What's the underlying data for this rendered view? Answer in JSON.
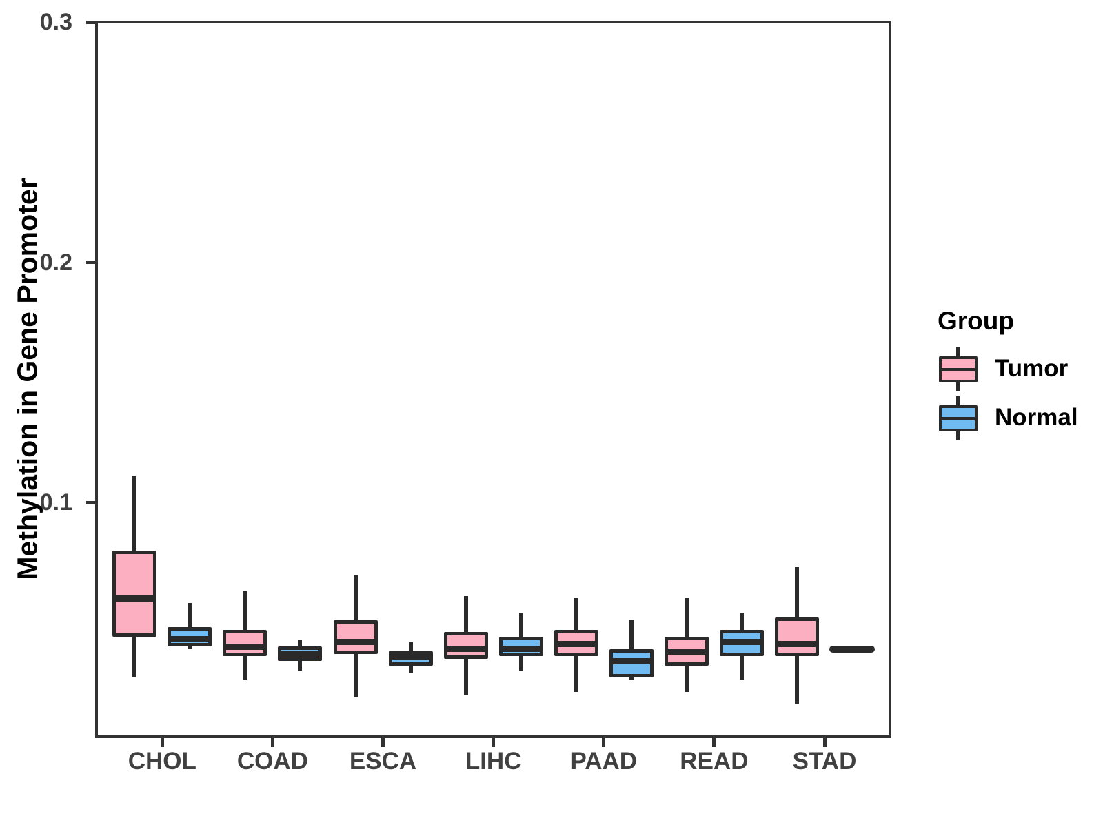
{
  "chart_data": {
    "type": "boxplot",
    "title": "",
    "xlabel": "",
    "ylabel": "Methylation in Gene Promoter",
    "legend_title": "Group",
    "legend_position": "right",
    "grid": false,
    "ylim": [
      0.002,
      0.3005
    ],
    "yticks": [
      {
        "value": 0.3,
        "label": "0.3"
      },
      {
        "value": 0.2,
        "label": "0.2"
      },
      {
        "value": 0.1,
        "label": "0.1"
      }
    ],
    "categories": [
      "CHOL",
      "COAD",
      "ESCA",
      "LIHC",
      "PAAD",
      "READ",
      "STAD"
    ],
    "series": [
      {
        "name": "Tumor",
        "color": "#FBAFC1",
        "boxes": [
          {
            "category": "CHOL",
            "whisker_low": 0.027,
            "q1": 0.044,
            "median": 0.06,
            "q3": 0.08,
            "whisker_high": 0.111
          },
          {
            "category": "COAD",
            "whisker_low": 0.026,
            "q1": 0.036,
            "median": 0.04,
            "q3": 0.047,
            "whisker_high": 0.063
          },
          {
            "category": "ESCA",
            "whisker_low": 0.019,
            "q1": 0.037,
            "median": 0.042,
            "q3": 0.051,
            "whisker_high": 0.07
          },
          {
            "category": "LIHC",
            "whisker_low": 0.02,
            "q1": 0.035,
            "median": 0.039,
            "q3": 0.046,
            "whisker_high": 0.061
          },
          {
            "category": "PAAD",
            "whisker_low": 0.021,
            "q1": 0.036,
            "median": 0.041,
            "q3": 0.047,
            "whisker_high": 0.06
          },
          {
            "category": "READ",
            "whisker_low": 0.021,
            "q1": 0.032,
            "median": 0.038,
            "q3": 0.044,
            "whisker_high": 0.06
          },
          {
            "category": "STAD",
            "whisker_low": 0.016,
            "q1": 0.036,
            "median": 0.041,
            "q3": 0.052,
            "whisker_high": 0.073
          }
        ]
      },
      {
        "name": "Normal",
        "color": "#6FBBF2",
        "boxes": [
          {
            "category": "CHOL",
            "whisker_low": 0.039,
            "q1": 0.04,
            "median": 0.043,
            "q3": 0.048,
            "whisker_high": 0.058
          },
          {
            "category": "COAD",
            "whisker_low": 0.03,
            "q1": 0.034,
            "median": 0.037,
            "q3": 0.04,
            "whisker_high": 0.043
          },
          {
            "category": "ESCA",
            "whisker_low": 0.029,
            "q1": 0.032,
            "median": 0.036,
            "q3": 0.038,
            "whisker_high": 0.042
          },
          {
            "category": "LIHC",
            "whisker_low": 0.03,
            "q1": 0.036,
            "median": 0.039,
            "q3": 0.044,
            "whisker_high": 0.054
          },
          {
            "category": "PAAD",
            "whisker_low": 0.026,
            "q1": 0.027,
            "median": 0.034,
            "q3": 0.039,
            "whisker_high": 0.051
          },
          {
            "category": "READ",
            "whisker_low": 0.026,
            "q1": 0.036,
            "median": 0.042,
            "q3": 0.047,
            "whisker_high": 0.054
          },
          {
            "category": "STAD",
            "whisker_low": 0.039,
            "q1": 0.039,
            "median": 0.039,
            "q3": 0.039,
            "whisker_high": 0.039
          }
        ]
      }
    ],
    "colors": {
      "ink": "#2A2A2A",
      "axis": "#333333",
      "tick_label": "#404040",
      "background": "#FFFFFF"
    }
  }
}
